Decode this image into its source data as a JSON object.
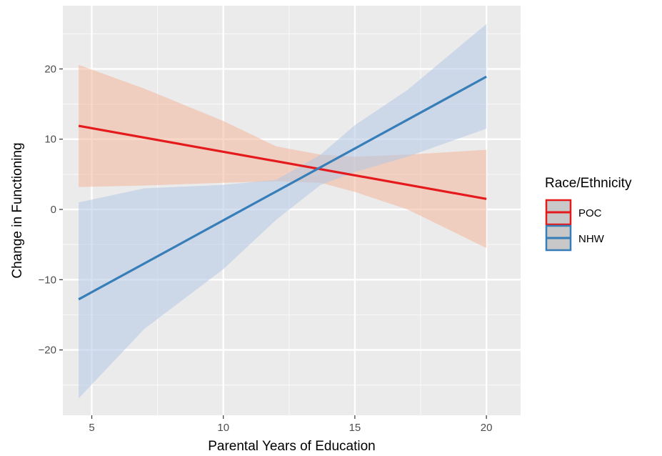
{
  "chart_data": {
    "type": "line",
    "title": "",
    "xlabel": "Parental Years of Education",
    "ylabel": "Change in Functioning",
    "xlim": [
      3.9,
      21.3
    ],
    "ylim": [
      -29.3,
      29.0
    ],
    "x_ticks": [
      5,
      10,
      15,
      20
    ],
    "x_tick_labels": [
      "5",
      "10",
      "15",
      "20"
    ],
    "y_ticks": [
      -20,
      -10,
      0,
      10,
      20
    ],
    "y_tick_labels": [
      "−20",
      "−10",
      "0",
      "10",
      "20"
    ],
    "grid": true,
    "legend_position": "right",
    "legend_title": "Race/Ethnicity",
    "series": [
      {
        "name": "POC",
        "color": "#e41a1c",
        "band_color": "#f4b79a",
        "x": [
          4.5,
          20
        ],
        "y": [
          11.9,
          1.5
        ],
        "ci_x": [
          4.5,
          7,
          10,
          12,
          13.7,
          15,
          17,
          20
        ],
        "ci_lower": [
          3.2,
          3.4,
          3.8,
          4.0,
          3.8,
          2.5,
          0.0,
          -5.5
        ],
        "ci_upper": [
          20.6,
          17.2,
          12.6,
          9.0,
          7.8,
          7.5,
          7.8,
          8.5
        ]
      },
      {
        "name": "NHW",
        "color": "#377eb8",
        "band_color": "#b3c6e6",
        "x": [
          4.5,
          20
        ],
        "y": [
          -12.8,
          18.9
        ],
        "ci_x": [
          4.5,
          7,
          10,
          12,
          13.7,
          15,
          17,
          20
        ],
        "ci_lower": [
          -26.9,
          -17.0,
          -8.5,
          -1.5,
          3.5,
          5.3,
          7.5,
          11.5
        ],
        "ci_upper": [
          1.0,
          3.0,
          3.5,
          4.2,
          7.8,
          12.0,
          17.0,
          26.4
        ]
      }
    ]
  }
}
